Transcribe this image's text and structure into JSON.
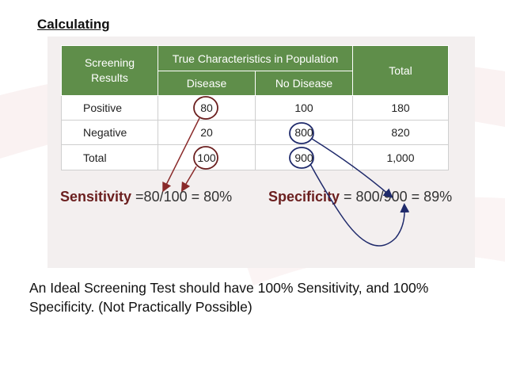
{
  "slide": {
    "title": "Calculating",
    "statement": "An Ideal Screening Test should have 100% Sensitivity, and 100% Specificity. (Not Practically Possible)"
  },
  "table": {
    "screening_header_line1": "Screening",
    "screening_header_line2": "Results",
    "true_char_header": "True Characteristics in Population",
    "total_header": "Total",
    "disease_header": "Disease",
    "no_disease_header": "No Disease",
    "rows": [
      {
        "label": "Positive",
        "disease": "80",
        "no_disease": "100",
        "total": "180"
      },
      {
        "label": "Negative",
        "disease": "20",
        "no_disease": "800",
        "total": "820"
      },
      {
        "label": "Total",
        "disease": "100",
        "no_disease": "900",
        "total": "1,000"
      }
    ]
  },
  "formulas": {
    "sensitivity_label": "Sensitivity",
    "sensitivity_expr": " =80/100 = 80%",
    "specificity_label": "Specificity",
    "specificity_expr": " = 800/900 = 89%"
  },
  "colors": {
    "header_green": "#5f8e4a",
    "circle_maroon": "#6b1f1f",
    "arrow_navy": "#1f2a6b"
  }
}
